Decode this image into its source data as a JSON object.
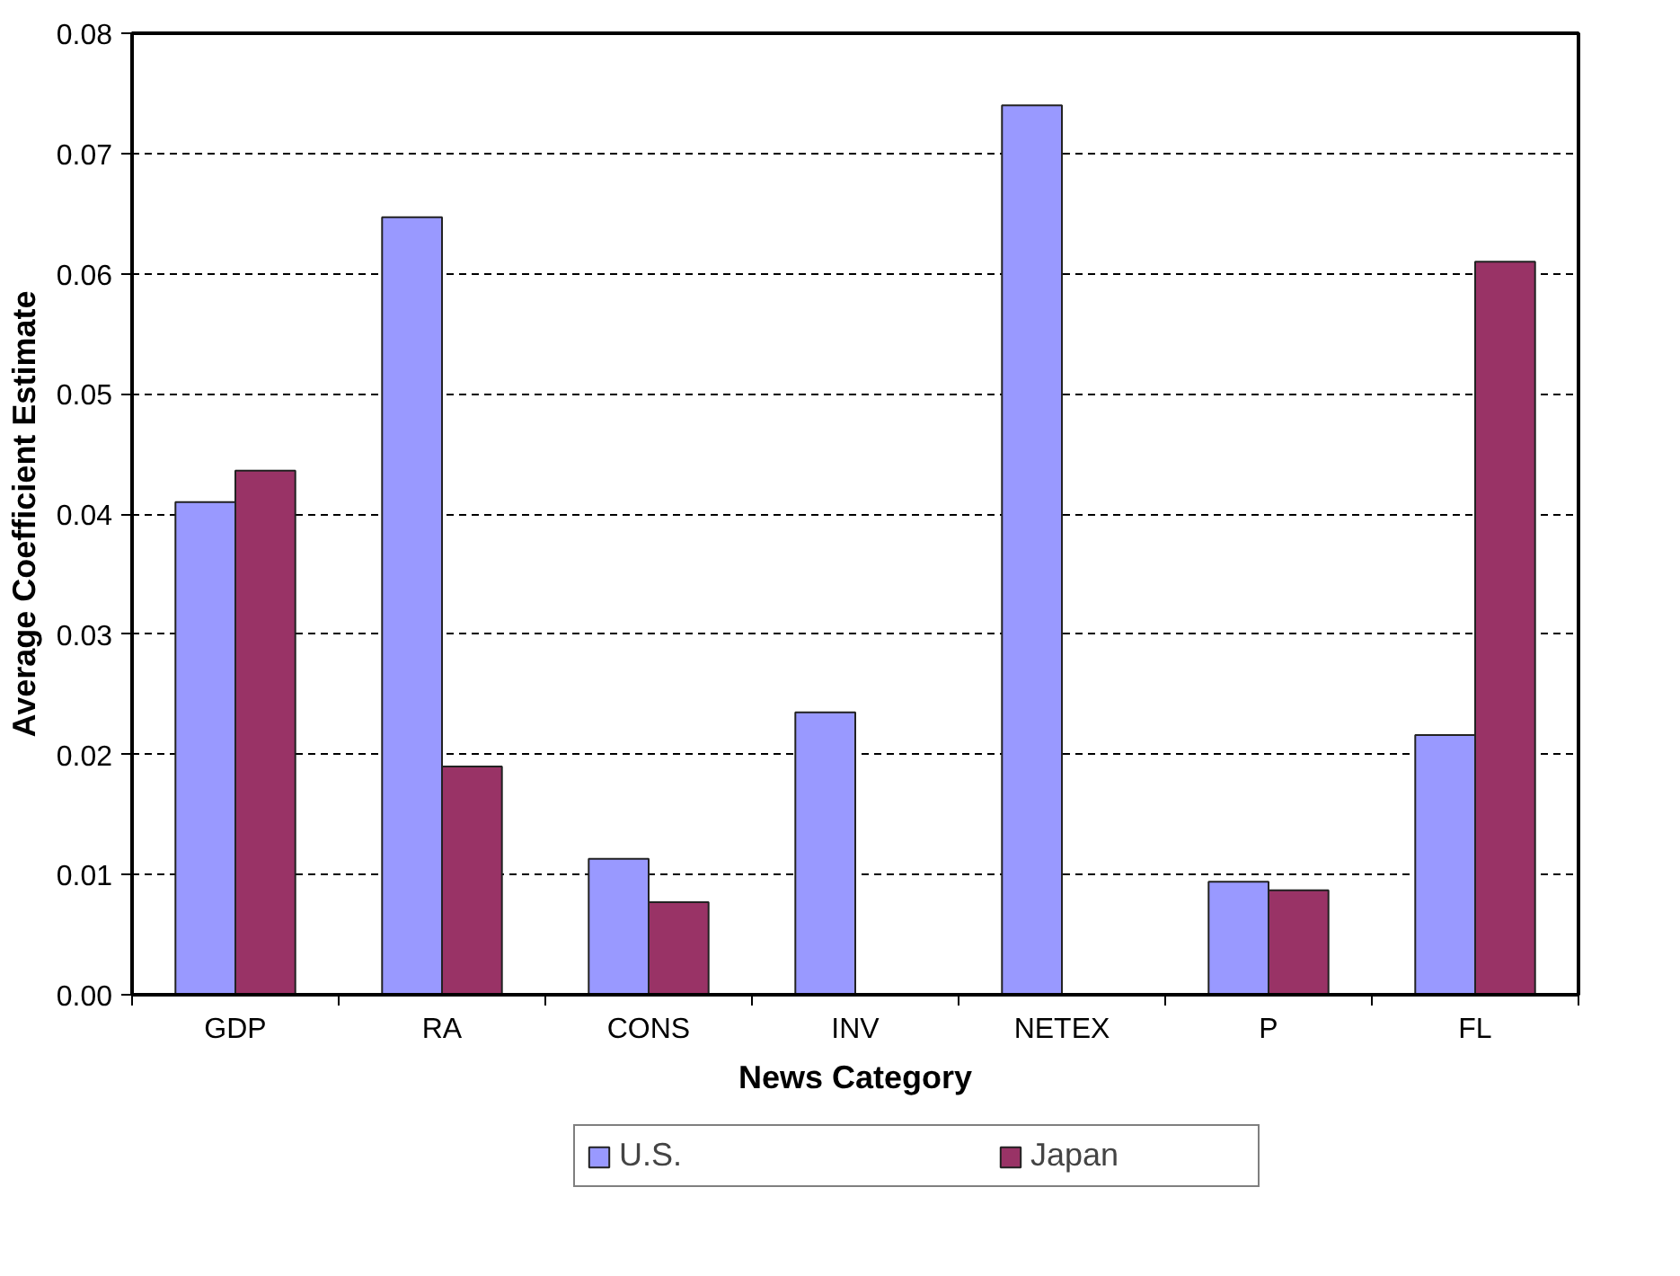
{
  "chart_data": {
    "type": "bar",
    "xlabel": "News Category",
    "ylabel": "Average Coefficient Estimate",
    "categories": [
      "GDP",
      "RA",
      "CONS",
      "INV",
      "NETEX",
      "P",
      "FL"
    ],
    "series": [
      {
        "name": "U.S.",
        "color": "#9999ff",
        "values": [
          0.041,
          0.0647,
          0.0113,
          0.0235,
          0.074,
          0.0094,
          0.0216
        ]
      },
      {
        "name": "Japan",
        "color": "#993366",
        "values": [
          0.0436,
          0.019,
          0.0077,
          null,
          null,
          0.0087,
          0.061
        ]
      }
    ],
    "ylim": [
      0,
      0.08
    ],
    "yticks": [
      {
        "value": 0,
        "label": "0.00"
      },
      0.01,
      0.02,
      0.03,
      0.04,
      0.05,
      0.06,
      0.07,
      0.08
    ],
    "grid": "y",
    "legend": "bottom"
  }
}
